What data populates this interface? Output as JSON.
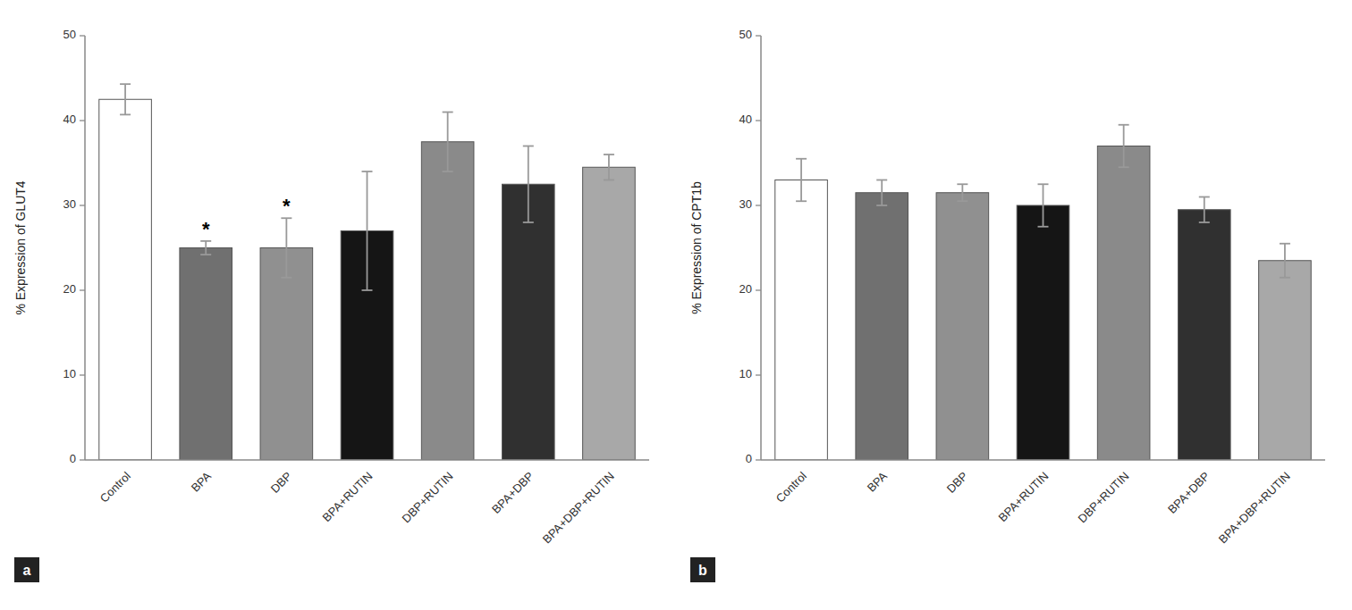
{
  "chart_data": [
    {
      "type": "bar",
      "title": "a",
      "ylabel": "% Expression of GLUT4",
      "categories": [
        "Control",
        "BPA",
        "DBP",
        "BPA+RUTIN",
        "DBP+RUTIN",
        "BPA+DBP",
        "BPA+DBP+RUTIN"
      ],
      "values": [
        42.5,
        25.0,
        25.0,
        27.0,
        37.5,
        32.5,
        34.5
      ],
      "errors": [
        1.8,
        0.8,
        3.5,
        7.0,
        3.5,
        4.5,
        1.5
      ],
      "colors": [
        "white",
        "#707070",
        "#909090",
        "#151515",
        "#8a8a8a",
        "#303030",
        "#a8a8a8"
      ],
      "annotations": [
        {
          "category": "BPA",
          "text": "*"
        },
        {
          "category": "DBP",
          "text": "*"
        }
      ],
      "ylim": [
        0,
        50
      ],
      "yticks": [
        0,
        10,
        20,
        30,
        40,
        50
      ],
      "grid": false
    },
    {
      "type": "bar",
      "title": "b",
      "ylabel": "% Expression of CPT1b",
      "categories": [
        "Control",
        "BPA",
        "DBP",
        "BPA+RUTIN",
        "DBP+RUTIN",
        "BPA+DBP",
        "BPA+DBP+RUTIN"
      ],
      "values": [
        33.0,
        31.5,
        31.5,
        30.0,
        37.0,
        29.5,
        23.5
      ],
      "errors": [
        2.5,
        1.5,
        1.0,
        2.5,
        2.5,
        1.5,
        2.0
      ],
      "colors": [
        "white",
        "#707070",
        "#909090",
        "#151515",
        "#8a8a8a",
        "#303030",
        "#a8a8a8"
      ],
      "ylim": [
        0,
        50
      ],
      "yticks": [
        0,
        10,
        20,
        30,
        40,
        50
      ],
      "grid": false
    }
  ]
}
